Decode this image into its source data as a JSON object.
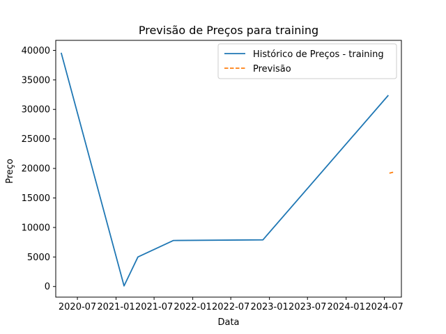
{
  "chart_data": {
    "type": "line",
    "title": "Previsão de Preços para training",
    "xlabel": "Data",
    "ylabel": "Preço",
    "x_ticks": [
      "2020-07",
      "2021-01",
      "2021-07",
      "2022-01",
      "2022-07",
      "2023-01",
      "2023-07",
      "2024-01",
      "2024-07"
    ],
    "y_ticks": [
      0,
      5000,
      10000,
      15000,
      20000,
      25000,
      30000,
      35000,
      40000
    ],
    "xlim": [
      "2020-03-20",
      "2024-09-20"
    ],
    "ylim": [
      -1800,
      41700
    ],
    "grid": false,
    "legend_position": "top-right",
    "series": [
      {
        "name": "Histórico de Preços - training",
        "style": "solid",
        "color": "#1f77b4",
        "points": [
          [
            "2020-04-15",
            39600
          ],
          [
            "2021-02-08",
            100
          ],
          [
            "2021-04-15",
            5000
          ],
          [
            "2021-10-01",
            7800
          ],
          [
            "2022-12-01",
            7900
          ],
          [
            "2024-07-20",
            32400
          ]
        ]
      },
      {
        "name": "Previsão",
        "style": "dashed",
        "color": "#ff7f0e",
        "points": [
          [
            "2024-07-25",
            19200
          ],
          [
            "2024-08-15",
            19400
          ]
        ]
      }
    ]
  }
}
